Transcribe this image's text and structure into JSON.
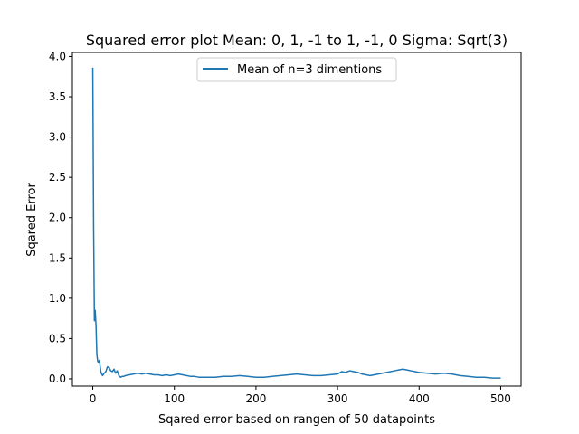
{
  "chart_data": {
    "type": "line",
    "title": "Squared error plot Mean: 0, 1, -1 to 1, -1, 0 Sigma: Sqrt(3)",
    "xlabel": "Sqared error based on rangen of 50 datapoints",
    "ylabel": "Sqared Error",
    "xlim": [
      -25,
      525
    ],
    "ylim": [
      -0.09,
      4.05
    ],
    "xticks": [
      0,
      100,
      200,
      300,
      400,
      500
    ],
    "xtick_labels": [
      "0",
      "100",
      "200",
      "300",
      "400",
      "500"
    ],
    "yticks": [
      0.0,
      0.5,
      1.0,
      1.5,
      2.0,
      2.5,
      3.0,
      3.5,
      4.0
    ],
    "ytick_labels": [
      "0.0",
      "0.5",
      "1.0",
      "1.5",
      "2.0",
      "2.5",
      "3.0",
      "3.5",
      "4.0"
    ],
    "grid": false,
    "legend_position": "top-center",
    "series": [
      {
        "name": "Mean of n=3 dimentions",
        "color": "#1f77b4",
        "x": [
          0,
          1,
          2,
          3,
          4,
          5,
          6,
          7,
          8,
          10,
          12,
          14,
          16,
          18,
          20,
          22,
          24,
          26,
          28,
          30,
          32,
          34,
          36,
          38,
          40,
          45,
          50,
          55,
          60,
          65,
          70,
          75,
          80,
          85,
          90,
          95,
          100,
          105,
          110,
          115,
          120,
          125,
          130,
          140,
          150,
          160,
          170,
          180,
          190,
          200,
          210,
          220,
          230,
          240,
          250,
          260,
          270,
          280,
          290,
          300,
          305,
          310,
          315,
          320,
          325,
          330,
          340,
          350,
          360,
          370,
          375,
          380,
          385,
          390,
          395,
          400,
          410,
          420,
          430,
          440,
          450,
          460,
          470,
          480,
          490,
          500
        ],
        "y": [
          3.86,
          1.9,
          0.72,
          0.85,
          0.65,
          0.3,
          0.22,
          0.2,
          0.23,
          0.08,
          0.04,
          0.07,
          0.09,
          0.15,
          0.14,
          0.1,
          0.09,
          0.12,
          0.07,
          0.1,
          0.04,
          0.02,
          0.03,
          0.03,
          0.04,
          0.05,
          0.06,
          0.07,
          0.06,
          0.07,
          0.06,
          0.05,
          0.05,
          0.04,
          0.05,
          0.04,
          0.05,
          0.06,
          0.05,
          0.04,
          0.03,
          0.03,
          0.02,
          0.02,
          0.02,
          0.03,
          0.03,
          0.04,
          0.03,
          0.02,
          0.02,
          0.03,
          0.04,
          0.05,
          0.06,
          0.05,
          0.04,
          0.04,
          0.05,
          0.06,
          0.09,
          0.08,
          0.1,
          0.09,
          0.08,
          0.06,
          0.04,
          0.06,
          0.08,
          0.1,
          0.11,
          0.12,
          0.11,
          0.1,
          0.09,
          0.08,
          0.07,
          0.06,
          0.07,
          0.06,
          0.04,
          0.03,
          0.02,
          0.02,
          0.01,
          0.01
        ]
      }
    ]
  }
}
